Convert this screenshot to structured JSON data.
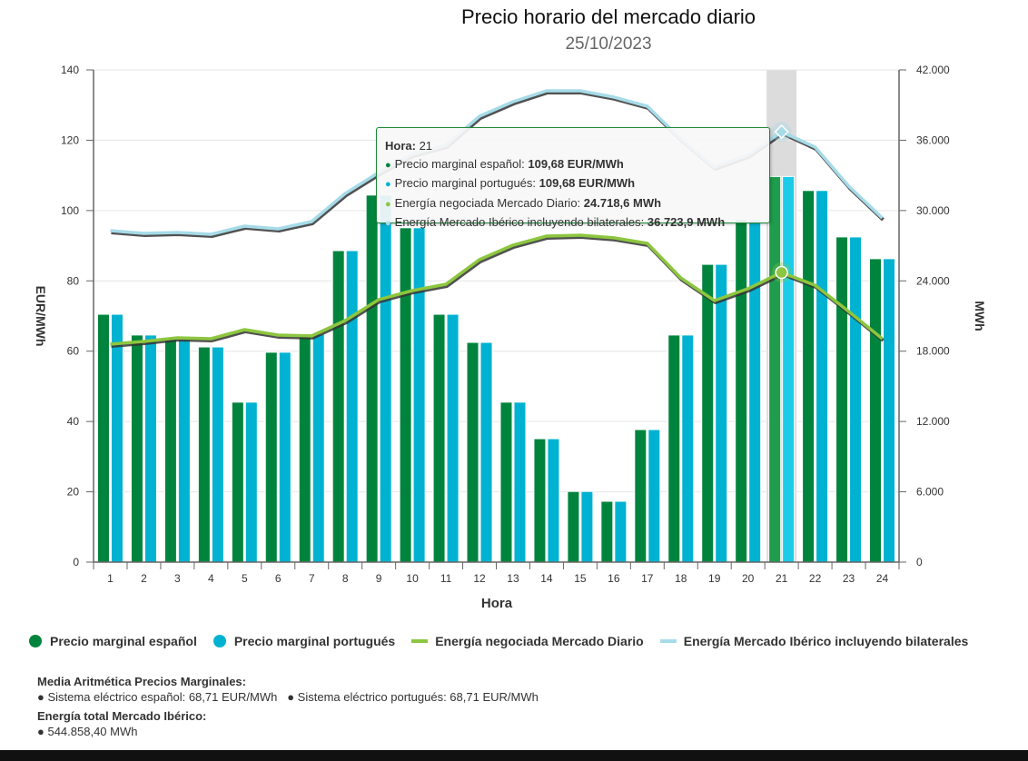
{
  "title": "Precio horario del mercado diario",
  "subtitle": "25/10/2023",
  "colors": {
    "spanish": "#00843d",
    "portuguese": "#00b2d1",
    "diario": "#8dc63f",
    "iberico": "#a6dbe8",
    "highlight_band": "#dcdcdc"
  },
  "chart_data": {
    "type": "bar",
    "title": "Precio horario del mercado diario",
    "subtitle": "25/10/2023",
    "xlabel": "Hora",
    "ylabel": "EUR/MWh",
    "y2label": "MWh",
    "categories": [
      "1",
      "2",
      "3",
      "4",
      "5",
      "6",
      "7",
      "8",
      "9",
      "10",
      "11",
      "12",
      "13",
      "14",
      "15",
      "16",
      "17",
      "18",
      "19",
      "20",
      "21",
      "22",
      "23",
      "24"
    ],
    "ylim": [
      0,
      140
    ],
    "yticks": [
      "0",
      "20",
      "40",
      "60",
      "80",
      "100",
      "120",
      "140"
    ],
    "y2lim": [
      0,
      42000
    ],
    "y2ticks": [
      "0",
      "6.000",
      "12.000",
      "18.000",
      "24.000",
      "30.000",
      "36.000",
      "42.000"
    ],
    "grid": true,
    "legend_position": "bottom",
    "series": [
      {
        "name": "Precio marginal español",
        "type": "bar",
        "axis": "left",
        "values": [
          70.5,
          64.6,
          63.3,
          61.2,
          45.5,
          59.7,
          64.8,
          88.6,
          104.4,
          95.1,
          70.5,
          62.5,
          45.5,
          35.1,
          20.1,
          17.3,
          37.7,
          64.6,
          84.7,
          97.4,
          109.68,
          105.7,
          92.5,
          86.3
        ]
      },
      {
        "name": "Precio marginal portugués",
        "type": "bar",
        "axis": "left",
        "values": [
          70.5,
          64.6,
          63.3,
          61.2,
          45.5,
          59.7,
          64.8,
          88.6,
          104.4,
          95.1,
          70.5,
          62.5,
          45.5,
          35.1,
          20.1,
          17.3,
          37.7,
          64.6,
          84.7,
          97.4,
          109.68,
          105.7,
          92.5,
          86.3
        ]
      },
      {
        "name": "Energía negociada Mercado Diario",
        "type": "line",
        "axis": "right",
        "values": [
          18600,
          18830,
          19140,
          19060,
          19840,
          19370,
          19300,
          20610,
          22400,
          23170,
          23710,
          25810,
          27050,
          27820,
          27900,
          27670,
          27200,
          24250,
          22320,
          23330,
          24718.6,
          23630,
          21390,
          19060
        ]
      },
      {
        "name": "Energía Mercado Ibérico incluyendo bilaterales",
        "type": "line",
        "axis": "right",
        "values": [
          28285,
          28050,
          28130,
          27975,
          28670,
          28440,
          29060,
          31460,
          33245,
          34790,
          35570,
          38050,
          39290,
          40220,
          40220,
          39680,
          38900,
          36110,
          33710,
          34720,
          36723.9,
          35410,
          32080,
          29370
        ]
      }
    ],
    "highlighted_category": "21"
  },
  "tooltip": {
    "hora_label": "Hora:",
    "hora_value": "21",
    "rows": [
      {
        "label": "Precio marginal español: ",
        "value": "109,68 EUR/MWh",
        "color": "#00843d"
      },
      {
        "label": "Precio marginal portugués: ",
        "value": "109,68 EUR/MWh",
        "color": "#00b2d1"
      },
      {
        "label": "Energía negociada Mercado Diario: ",
        "value": "24.718,6 MWh",
        "color": "#8dc63f"
      },
      {
        "label": "Energía Mercado Ibérico incluyendo bilaterales: ",
        "value": "36.723,9 MWh",
        "color": "#a6dbe8"
      }
    ]
  },
  "legend": [
    {
      "label": "Precio marginal español",
      "shape": "dot",
      "color": "#00843d"
    },
    {
      "label": "Precio marginal portugués",
      "shape": "dot",
      "color": "#00b2d1"
    },
    {
      "label": "Energía negociada Mercado Diario",
      "shape": "line",
      "color": "#8dc63f"
    },
    {
      "label": "Energía Mercado Ibérico incluyendo bilaterales",
      "shape": "line",
      "color": "#a6dbe8"
    }
  ],
  "summary": {
    "media_heading": "Media Aritmética Precios Marginales:",
    "media_es": "● Sistema eléctrico español: 68,71 EUR/MWh",
    "media_pt": "● Sistema eléctrico portugués: 68,71 EUR/MWh",
    "energia_heading": "Energía total Mercado Ibérico:",
    "energia_total": "● 544.858,40 MWh"
  }
}
